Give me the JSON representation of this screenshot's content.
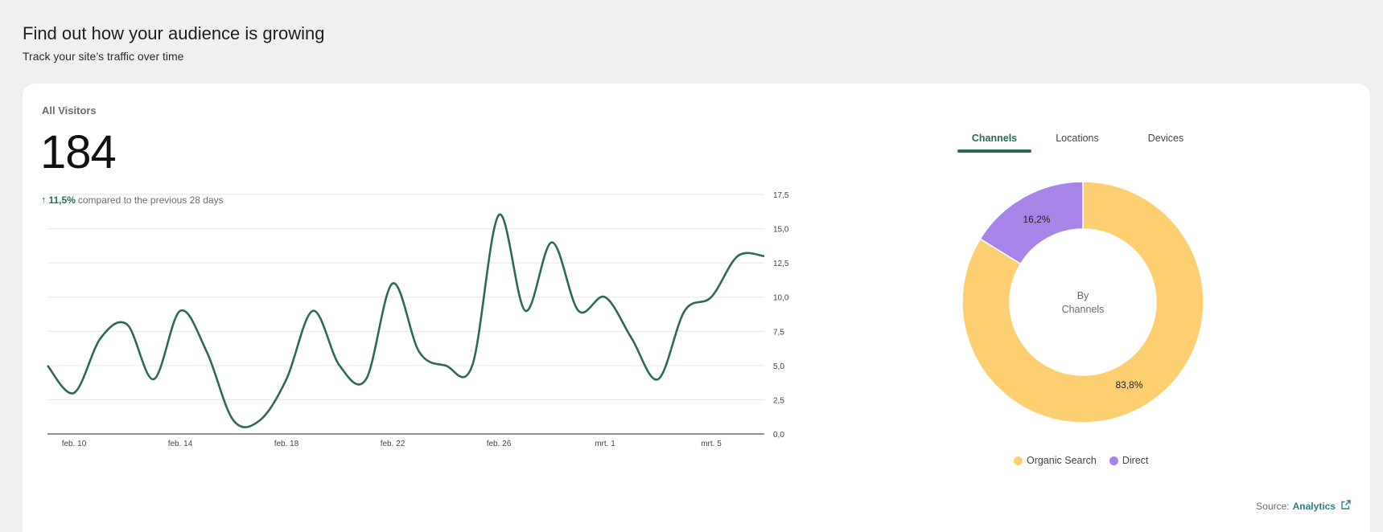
{
  "header": {
    "title": "Find out how your audience is growing",
    "subtitle": "Track your site’s traffic over time"
  },
  "metric": {
    "label": "All Visitors",
    "value": "184",
    "change": "11,5%",
    "comparison_text": "compared to the previous 28 days"
  },
  "tabs": [
    {
      "label": "Channels",
      "active": true
    },
    {
      "label": "Locations",
      "active": false
    },
    {
      "label": "Devices",
      "active": false
    }
  ],
  "source": {
    "prefix": "Source:",
    "link_label": "Analytics"
  },
  "chart_data": [
    {
      "type": "line",
      "x_tick_labels": [
        "feb. 10",
        "feb. 14",
        "feb. 18",
        "feb. 22",
        "feb. 26",
        "mrt. 1",
        "mrt. 5"
      ],
      "x_tick_index": [
        1,
        5,
        9,
        13,
        17,
        21,
        25
      ],
      "y_tick_labels": [
        "0,0",
        "2,5",
        "5,0",
        "7,5",
        "10,0",
        "12,5",
        "15,0",
        "17,5"
      ],
      "ylim": [
        0,
        17.5
      ],
      "series": [
        {
          "values": [
            5,
            3,
            7,
            8,
            4,
            9,
            6,
            1,
            1,
            4,
            9,
            5,
            4,
            11,
            6,
            5,
            5,
            16,
            9,
            14,
            9,
            10,
            7,
            4,
            9,
            10,
            13,
            13
          ],
          "color": "#2d6a4f"
        }
      ],
      "grid": true,
      "line_color": "#2d6a4f"
    },
    {
      "type": "pie",
      "center_label": [
        "By",
        "Channels"
      ],
      "slices": [
        {
          "name": "Organic Search",
          "value": 83.8,
          "label": "83,8%",
          "color": "#fecf71"
        },
        {
          "name": "Direct",
          "value": 16.2,
          "label": "16,2%",
          "color": "#a884e8"
        }
      ]
    }
  ]
}
